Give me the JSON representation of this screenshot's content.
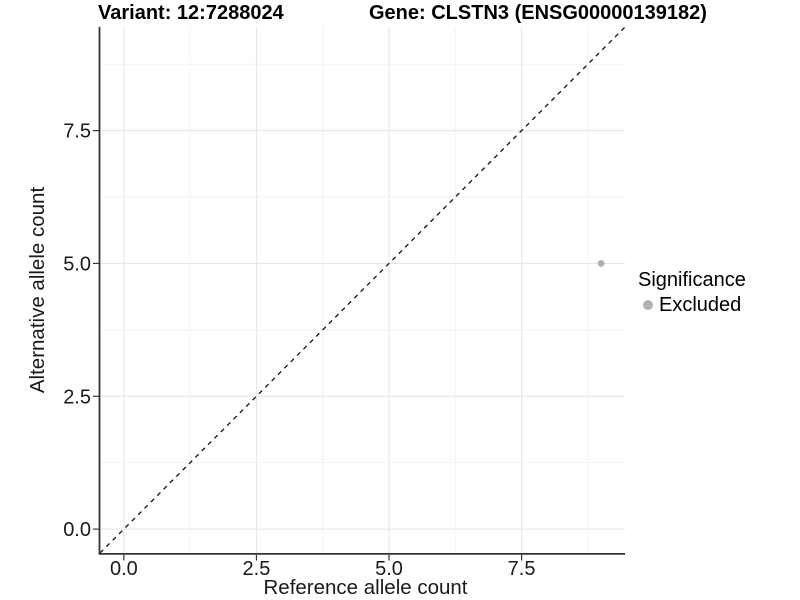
{
  "header": {
    "title_left": "Variant: 12:7288024",
    "title_right": "Gene: CLSTN3 (ENSG00000139182)"
  },
  "legend": {
    "title": "Significance",
    "items": [
      {
        "label": "Excluded",
        "color": "#b0b0b0"
      }
    ]
  },
  "chart_data": {
    "type": "scatter",
    "title": "Variant: 12:7288024    Gene: CLSTN3 (ENSG00000139182)",
    "xlabel": "Reference allele count",
    "ylabel": "Alternative allele count",
    "xlim": [
      -0.45,
      9.45
    ],
    "ylim": [
      -0.45,
      9.45
    ],
    "x_major_ticks": [
      0,
      2.5,
      5,
      7.5
    ],
    "y_major_ticks": [
      0,
      2.5,
      5,
      7.5
    ],
    "x_tick_labels": [
      "0.0",
      "2.5",
      "5.0",
      "7.5"
    ],
    "y_tick_labels": [
      "0.0",
      "2.5",
      "5.0",
      "7.5"
    ],
    "x_minor_ticks": [
      1.25,
      3.75,
      6.25,
      8.75
    ],
    "y_minor_ticks": [
      1.25,
      3.75,
      6.25,
      8.75
    ],
    "grid": true,
    "legend_position": "right",
    "series": [
      {
        "name": "Excluded",
        "color": "#b0b0b0",
        "points": [
          {
            "x": 9,
            "y": 5
          }
        ]
      }
    ],
    "reference_line": {
      "type": "identity",
      "slope": 1,
      "intercept": 0,
      "style": "dashed",
      "color": "#111111"
    }
  },
  "colors": {
    "background": "#ffffff",
    "axis_line": "#333333",
    "tick_mark": "#333333",
    "tick_label": "#1a1a1a",
    "axis_title": "#1a1a1a",
    "grid_major": "#e8e8e8",
    "grid_minor": "#f3f3f3"
  }
}
